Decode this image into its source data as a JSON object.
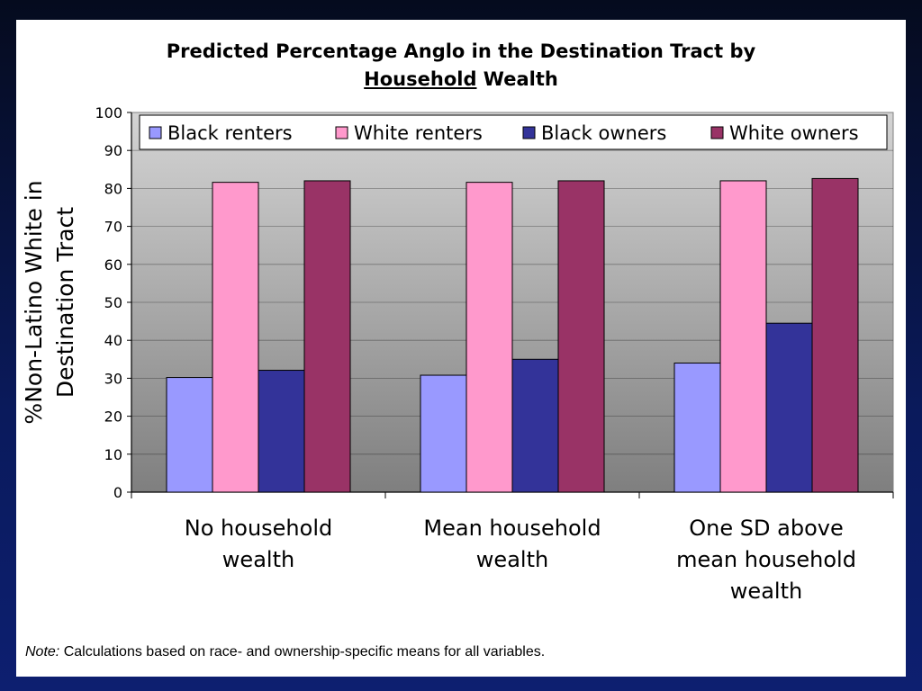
{
  "title": {
    "line1": "Predicted Percentage Anglo in the Destination Tract by",
    "line2_underlined": "Household",
    "line2_rest": " Wealth"
  },
  "note": {
    "label": "Note:",
    "text": " Calculations based on race- and ownership-specific means for all variables."
  },
  "colors": {
    "black_renters": "#9999ff",
    "white_renters": "#ff99cc",
    "black_owners": "#333399",
    "white_owners": "#993366"
  },
  "chart_data": {
    "type": "bar",
    "title": "Predicted Percentage Anglo in the Destination Tract by Household Wealth",
    "ylabel_lines": [
      "%Non-Latino White in",
      "Destination Tract"
    ],
    "ylim": [
      0,
      100
    ],
    "yticks": [
      "0",
      "10",
      "20",
      "30",
      "40",
      "50",
      "60",
      "70",
      "80",
      "90",
      "100"
    ],
    "grid": true,
    "legend_position": "top",
    "categories": [
      [
        "No household",
        "wealth"
      ],
      [
        "Mean household",
        "wealth"
      ],
      [
        "One SD above",
        "mean household",
        "wealth"
      ]
    ],
    "series": [
      {
        "name": "Black renters",
        "color": "#9999ff",
        "values": [
          30.2,
          30.8,
          34.0
        ]
      },
      {
        "name": "White renters",
        "color": "#ff99cc",
        "values": [
          81.6,
          81.6,
          82.0
        ]
      },
      {
        "name": "Black owners",
        "color": "#333399",
        "values": [
          32.1,
          35.0,
          44.5
        ]
      },
      {
        "name": "White owners",
        "color": "#993366",
        "values": [
          82.0,
          82.0,
          82.6
        ]
      }
    ]
  }
}
